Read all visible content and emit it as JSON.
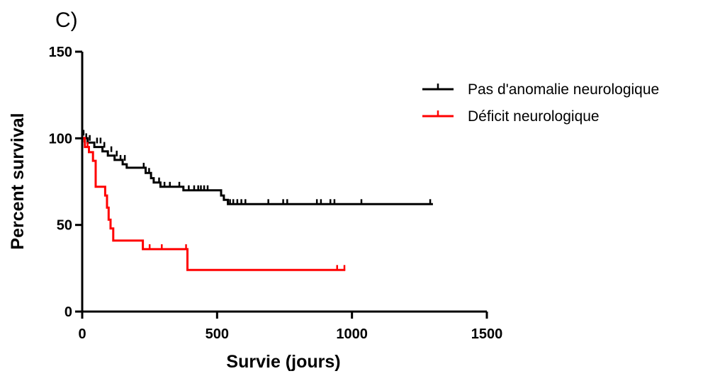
{
  "panel_label": "C)",
  "chart_data": {
    "type": "line",
    "subtype": "kaplan-meier",
    "title": "",
    "xlabel": "Survie (jours)",
    "ylabel": "Percent survival",
    "xlim": [
      0,
      1500
    ],
    "ylim": [
      0,
      150
    ],
    "xticks": [
      0,
      500,
      1000,
      1500
    ],
    "yticks": [
      0,
      50,
      100,
      150
    ],
    "xtick_labels": [
      "0",
      "500",
      "1000",
      "1500"
    ],
    "ytick_labels": [
      "0",
      "50",
      "100",
      "150"
    ],
    "grid": false,
    "legend_position": "top-right",
    "series": [
      {
        "name": "Pas d'anomalie neurologique",
        "color": "#000000",
        "steps": [
          [
            0,
            100
          ],
          [
            20,
            97.5
          ],
          [
            45,
            95
          ],
          [
            75,
            92.5
          ],
          [
            95,
            90
          ],
          [
            120,
            87.5
          ],
          [
            150,
            85
          ],
          [
            165,
            83
          ],
          [
            235,
            80
          ],
          [
            255,
            77
          ],
          [
            265,
            74.5
          ],
          [
            290,
            72
          ],
          [
            375,
            70
          ],
          [
            515,
            67
          ],
          [
            525,
            64.5
          ],
          [
            540,
            62
          ],
          [
            1300,
            62
          ]
        ],
        "censored": [
          [
            5,
            102
          ],
          [
            15,
            100
          ],
          [
            28,
            99
          ],
          [
            55,
            97.5
          ],
          [
            68,
            97.5
          ],
          [
            82,
            95
          ],
          [
            108,
            92.5
          ],
          [
            128,
            90
          ],
          [
            142,
            87.5
          ],
          [
            158,
            87.5
          ],
          [
            228,
            83
          ],
          [
            248,
            80
          ],
          [
            285,
            74.5
          ],
          [
            305,
            72
          ],
          [
            325,
            72
          ],
          [
            360,
            72
          ],
          [
            395,
            70
          ],
          [
            415,
            70
          ],
          [
            430,
            70
          ],
          [
            440,
            70
          ],
          [
            452,
            70
          ],
          [
            465,
            70
          ],
          [
            548,
            62
          ],
          [
            560,
            62
          ],
          [
            575,
            62
          ],
          [
            590,
            62
          ],
          [
            605,
            62
          ],
          [
            690,
            62
          ],
          [
            745,
            62
          ],
          [
            760,
            62
          ],
          [
            870,
            62
          ],
          [
            885,
            62
          ],
          [
            920,
            62
          ],
          [
            935,
            62
          ],
          [
            1035,
            62
          ],
          [
            1290,
            62
          ]
        ]
      },
      {
        "name": "Déficit neurologique",
        "color": "#ff0000",
        "steps": [
          [
            0,
            100
          ],
          [
            10,
            95
          ],
          [
            25,
            92
          ],
          [
            40,
            87
          ],
          [
            50,
            72
          ],
          [
            85,
            67
          ],
          [
            92,
            60
          ],
          [
            98,
            53
          ],
          [
            105,
            48
          ],
          [
            115,
            41
          ],
          [
            225,
            36
          ],
          [
            390,
            24
          ],
          [
            975,
            24
          ]
        ],
        "censored": [
          [
            8,
            98
          ],
          [
            20,
            95
          ],
          [
            250,
            36
          ],
          [
            295,
            36
          ],
          [
            385,
            36
          ],
          [
            945,
            24
          ],
          [
            972,
            24
          ]
        ]
      }
    ]
  }
}
